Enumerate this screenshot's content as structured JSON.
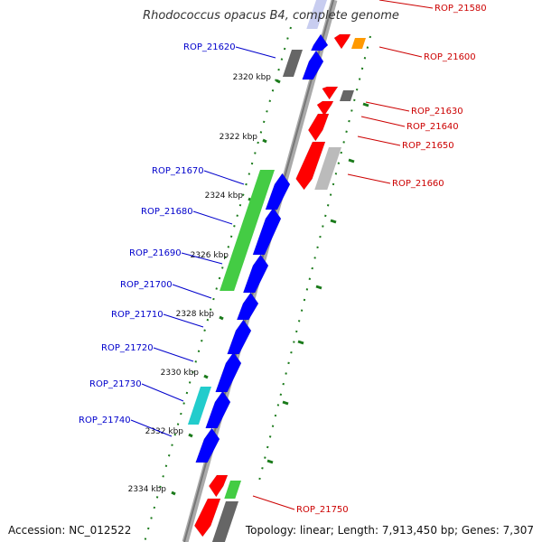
{
  "title": "Rhodococcus opacus B4, complete genome",
  "footer": {
    "accession": "Accession: NC_012522",
    "topology": "Topology: linear; Length: 7,913,450 bp; Genes: 7,307"
  },
  "colors": {
    "plus_label": "#0000cc",
    "minus_label": "#cc0000",
    "backbone": "#888888",
    "tick": "#1a7a1a"
  },
  "kbp_labels": [
    "2320 kbp",
    "2322 kbp",
    "2324 kbp",
    "2326 kbp",
    "2328 kbp",
    "2330 kbp",
    "2332 kbp",
    "2334 kbp"
  ],
  "genes_plus": [
    "ROP_21620",
    "ROP_21670",
    "ROP_21680",
    "ROP_21690",
    "ROP_21700",
    "ROP_21710",
    "ROP_21720",
    "ROP_21730",
    "ROP_21740"
  ],
  "genes_minus": [
    "ROP_21580",
    "ROP_21600",
    "ROP_21630",
    "ROP_21640",
    "ROP_21650",
    "ROP_21660",
    "ROP_21750"
  ]
}
